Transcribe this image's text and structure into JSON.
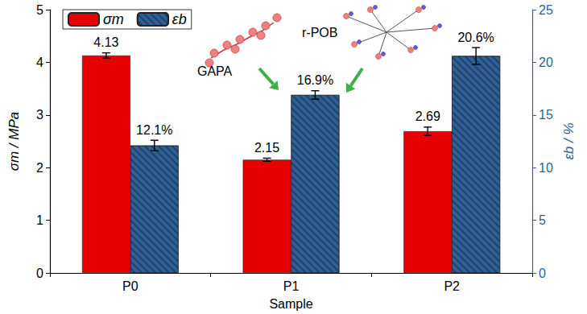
{
  "chart_data": {
    "type": "bar",
    "categories": [
      "P0",
      "P1",
      "P2"
    ],
    "x_label": "Sample",
    "y_label": "σm / MPa",
    "y2_label": "εb / %",
    "series": [
      {
        "name": "σm",
        "color": "#e60000",
        "values": [
          4.13,
          2.15,
          2.69
        ],
        "errors": [
          0.05,
          0.03,
          0.08
        ]
      },
      {
        "name": "εb",
        "color": "#2f5f94",
        "axis": "y2",
        "values": [
          12.1,
          16.9,
          20.6
        ],
        "value_labels": [
          "12.1%",
          "16.9%",
          "20.6%"
        ],
        "errors": [
          0.5,
          0.4,
          0.8
        ]
      }
    ],
    "ylim": [
      0,
      5
    ],
    "yticks": [
      0,
      1,
      2,
      3,
      4,
      5
    ],
    "y2lim": [
      0,
      25
    ],
    "y2ticks": [
      0,
      5,
      10,
      15,
      20,
      25
    ],
    "data_labels": true,
    "grid": false,
    "legend": "upper left",
    "annotations": [
      "GAPA",
      "r-POB"
    ]
  }
}
